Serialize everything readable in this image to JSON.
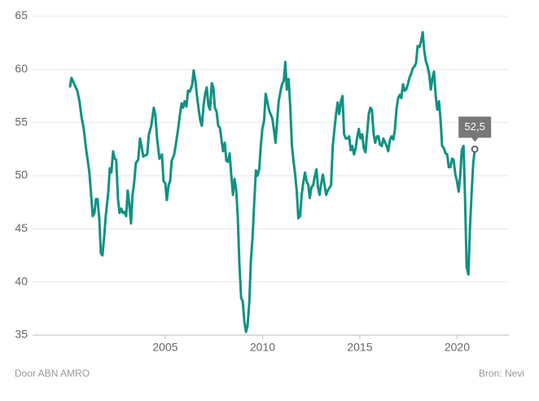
{
  "chart_data": {
    "type": "line",
    "annotation": "52,5",
    "credit": "Door ABN AMRO",
    "source": "Bron: Nevi",
    "x": [
      2000.1,
      2000.18,
      2000.35,
      2000.48,
      2000.6,
      2000.69,
      2000.81,
      2000.94,
      2001.1,
      2001.19,
      2001.27,
      2001.36,
      2001.44,
      2001.52,
      2001.61,
      2001.69,
      2001.77,
      2001.86,
      2001.94,
      2002.07,
      2002.15,
      2002.23,
      2002.32,
      2002.4,
      2002.48,
      2002.57,
      2002.65,
      2002.74,
      2002.82,
      2002.9,
      2002.99,
      2003.07,
      2003.15,
      2003.24,
      2003.32,
      2003.41,
      2003.49,
      2003.61,
      2003.7,
      2003.78,
      2003.87,
      2004.07,
      2004.16,
      2004.28,
      2004.41,
      2004.49,
      2004.58,
      2004.7,
      2004.83,
      2004.91,
      2005.0,
      2005.08,
      2005.17,
      2005.25,
      2005.33,
      2005.46,
      2005.54,
      2005.67,
      2005.75,
      2005.84,
      2005.92,
      2006.0,
      2006.09,
      2006.17,
      2006.26,
      2006.38,
      2006.46,
      2006.55,
      2006.63,
      2006.72,
      2006.8,
      2006.88,
      2006.97,
      2007.05,
      2007.13,
      2007.22,
      2007.3,
      2007.39,
      2007.47,
      2007.55,
      2007.64,
      2007.72,
      2007.81,
      2007.89,
      2007.97,
      2008.06,
      2008.14,
      2008.23,
      2008.31,
      2008.39,
      2008.48,
      2008.56,
      2008.65,
      2008.73,
      2008.81,
      2008.9,
      2008.98,
      2009.07,
      2009.15,
      2009.23,
      2009.32,
      2009.4,
      2009.49,
      2009.57,
      2009.66,
      2009.74,
      2009.83,
      2009.91,
      2009.99,
      2010.08,
      2010.16,
      2010.25,
      2010.33,
      2010.41,
      2010.5,
      2010.58,
      2010.67,
      2010.75,
      2010.83,
      2010.92,
      2011.0,
      2011.09,
      2011.17,
      2011.25,
      2011.34,
      2011.42,
      2011.51,
      2011.59,
      2011.67,
      2011.76,
      2011.84,
      2011.93,
      2012.01,
      2012.09,
      2012.18,
      2012.26,
      2012.35,
      2012.43,
      2012.51,
      2012.6,
      2012.68,
      2012.77,
      2012.85,
      2012.93,
      2013.02,
      2013.1,
      2013.19,
      2013.27,
      2013.35,
      2013.52,
      2013.61,
      2013.69,
      2013.78,
      2013.86,
      2013.94,
      2014.03,
      2014.11,
      2014.19,
      2014.28,
      2014.36,
      2014.45,
      2014.53,
      2014.61,
      2014.7,
      2014.78,
      2014.87,
      2014.95,
      2015.03,
      2015.12,
      2015.2,
      2015.29,
      2015.37,
      2015.46,
      2015.54,
      2015.62,
      2015.71,
      2015.79,
      2015.88,
      2015.96,
      2016.04,
      2016.13,
      2016.21,
      2016.3,
      2016.38,
      2016.46,
      2016.55,
      2016.63,
      2016.72,
      2016.8,
      2016.88,
      2016.97,
      2017.05,
      2017.13,
      2017.22,
      2017.3,
      2017.38,
      2017.47,
      2017.55,
      2017.64,
      2017.72,
      2017.81,
      2017.89,
      2017.97,
      2018.06,
      2018.14,
      2018.23,
      2018.31,
      2018.39,
      2018.48,
      2018.56,
      2018.65,
      2018.73,
      2018.81,
      2018.9,
      2018.98,
      2019.07,
      2019.15,
      2019.23,
      2019.32,
      2019.4,
      2019.49,
      2019.57,
      2019.65,
      2019.74,
      2019.82,
      2019.91,
      2019.99,
      2020.08,
      2020.16,
      2020.24,
      2020.33,
      2020.41,
      2020.49,
      2020.58,
      2020.66,
      2020.74,
      2020.83,
      2020.91
    ],
    "series": [
      {
        "color": "#0f9282",
        "values": [
          58.3,
          59.2,
          58.5,
          58.0,
          56.9,
          55.6,
          54.4,
          52.4,
          50.3,
          48.2,
          46.2,
          46.5,
          47.8,
          47.8,
          45.9,
          42.7,
          42.5,
          44.2,
          46.2,
          48.4,
          50.7,
          50.3,
          52.3,
          51.6,
          51.5,
          47.8,
          46.5,
          46.9,
          46.5,
          46.6,
          46.2,
          48.6,
          47.4,
          45.5,
          48.2,
          49.5,
          51.2,
          51.5,
          53.5,
          52.8,
          51.8,
          52.0,
          53.9,
          54.7,
          56.4,
          55.7,
          53.5,
          51.6,
          52.0,
          49.5,
          49.3,
          47.7,
          49.1,
          49.5,
          51.4,
          52.0,
          52.9,
          54.5,
          55.7,
          56.8,
          56.4,
          57.0,
          56.5,
          58.0,
          57.9,
          58.5,
          59.9,
          58.9,
          57.5,
          56.2,
          55.2,
          54.7,
          56.6,
          57.7,
          58.3,
          56.6,
          56.2,
          58.7,
          58.3,
          56.4,
          56.0,
          54.7,
          54.5,
          53.4,
          52.3,
          53.1,
          51.4,
          51.3,
          52.1,
          50.1,
          48.2,
          49.7,
          48.6,
          46.0,
          41.7,
          38.5,
          38.2,
          36.2,
          35.3,
          35.9,
          38.1,
          42.0,
          44.3,
          47.4,
          50.5,
          50.0,
          50.6,
          52.8,
          54.4,
          55.2,
          57.7,
          56.9,
          56.2,
          55.8,
          55.4,
          54.4,
          53.1,
          55.2,
          57.0,
          57.9,
          58.6,
          58.9,
          60.7,
          58.1,
          59.1,
          56.6,
          52.8,
          51.4,
          50.2,
          48.5,
          46.0,
          46.2,
          48.2,
          49.3,
          50.3,
          49.5,
          49.1,
          47.9,
          48.9,
          49.1,
          49.9,
          50.6,
          48.9,
          48.2,
          49.3,
          50.1,
          49.1,
          48.2,
          48.6,
          49.1,
          52.8,
          54.3,
          55.8,
          56.9,
          55.8,
          57.0,
          57.5,
          53.9,
          53.5,
          53.5,
          53.7,
          52.4,
          52.8,
          52.0,
          52.5,
          53.7,
          54.4,
          53.5,
          53.9,
          52.6,
          52.2,
          53.9,
          55.8,
          56.4,
          56.2,
          53.9,
          53.1,
          53.7,
          53.7,
          52.9,
          52.8,
          53.5,
          53.1,
          52.8,
          52.3,
          53.4,
          53.7,
          53.4,
          54.3,
          56.2,
          57.3,
          57.6,
          57.3,
          58.6,
          58.0,
          58.1,
          58.6,
          59.2,
          59.6,
          60.1,
          60.3,
          60.6,
          62.2,
          62.1,
          62.6,
          63.5,
          61.8,
          60.8,
          60.3,
          59.6,
          58.1,
          59.2,
          59.8,
          57.5,
          56.2,
          57.0,
          55.2,
          52.8,
          52.6,
          52.1,
          52.0,
          50.8,
          50.8,
          51.6,
          51.5,
          50.1,
          49.5,
          48.5,
          50.0,
          52.4,
          52.8,
          47.7,
          41.4,
          40.7,
          45.1,
          48.2,
          51.2,
          52.5
        ]
      }
    ],
    "xlim": [
      1998.18,
      2022.66
    ],
    "xticks": [
      2005,
      2010,
      2015,
      2020
    ],
    "ylim": [
      35,
      65
    ],
    "yticks": [
      35,
      40,
      45,
      50,
      55,
      60,
      65
    ],
    "grid": true
  }
}
